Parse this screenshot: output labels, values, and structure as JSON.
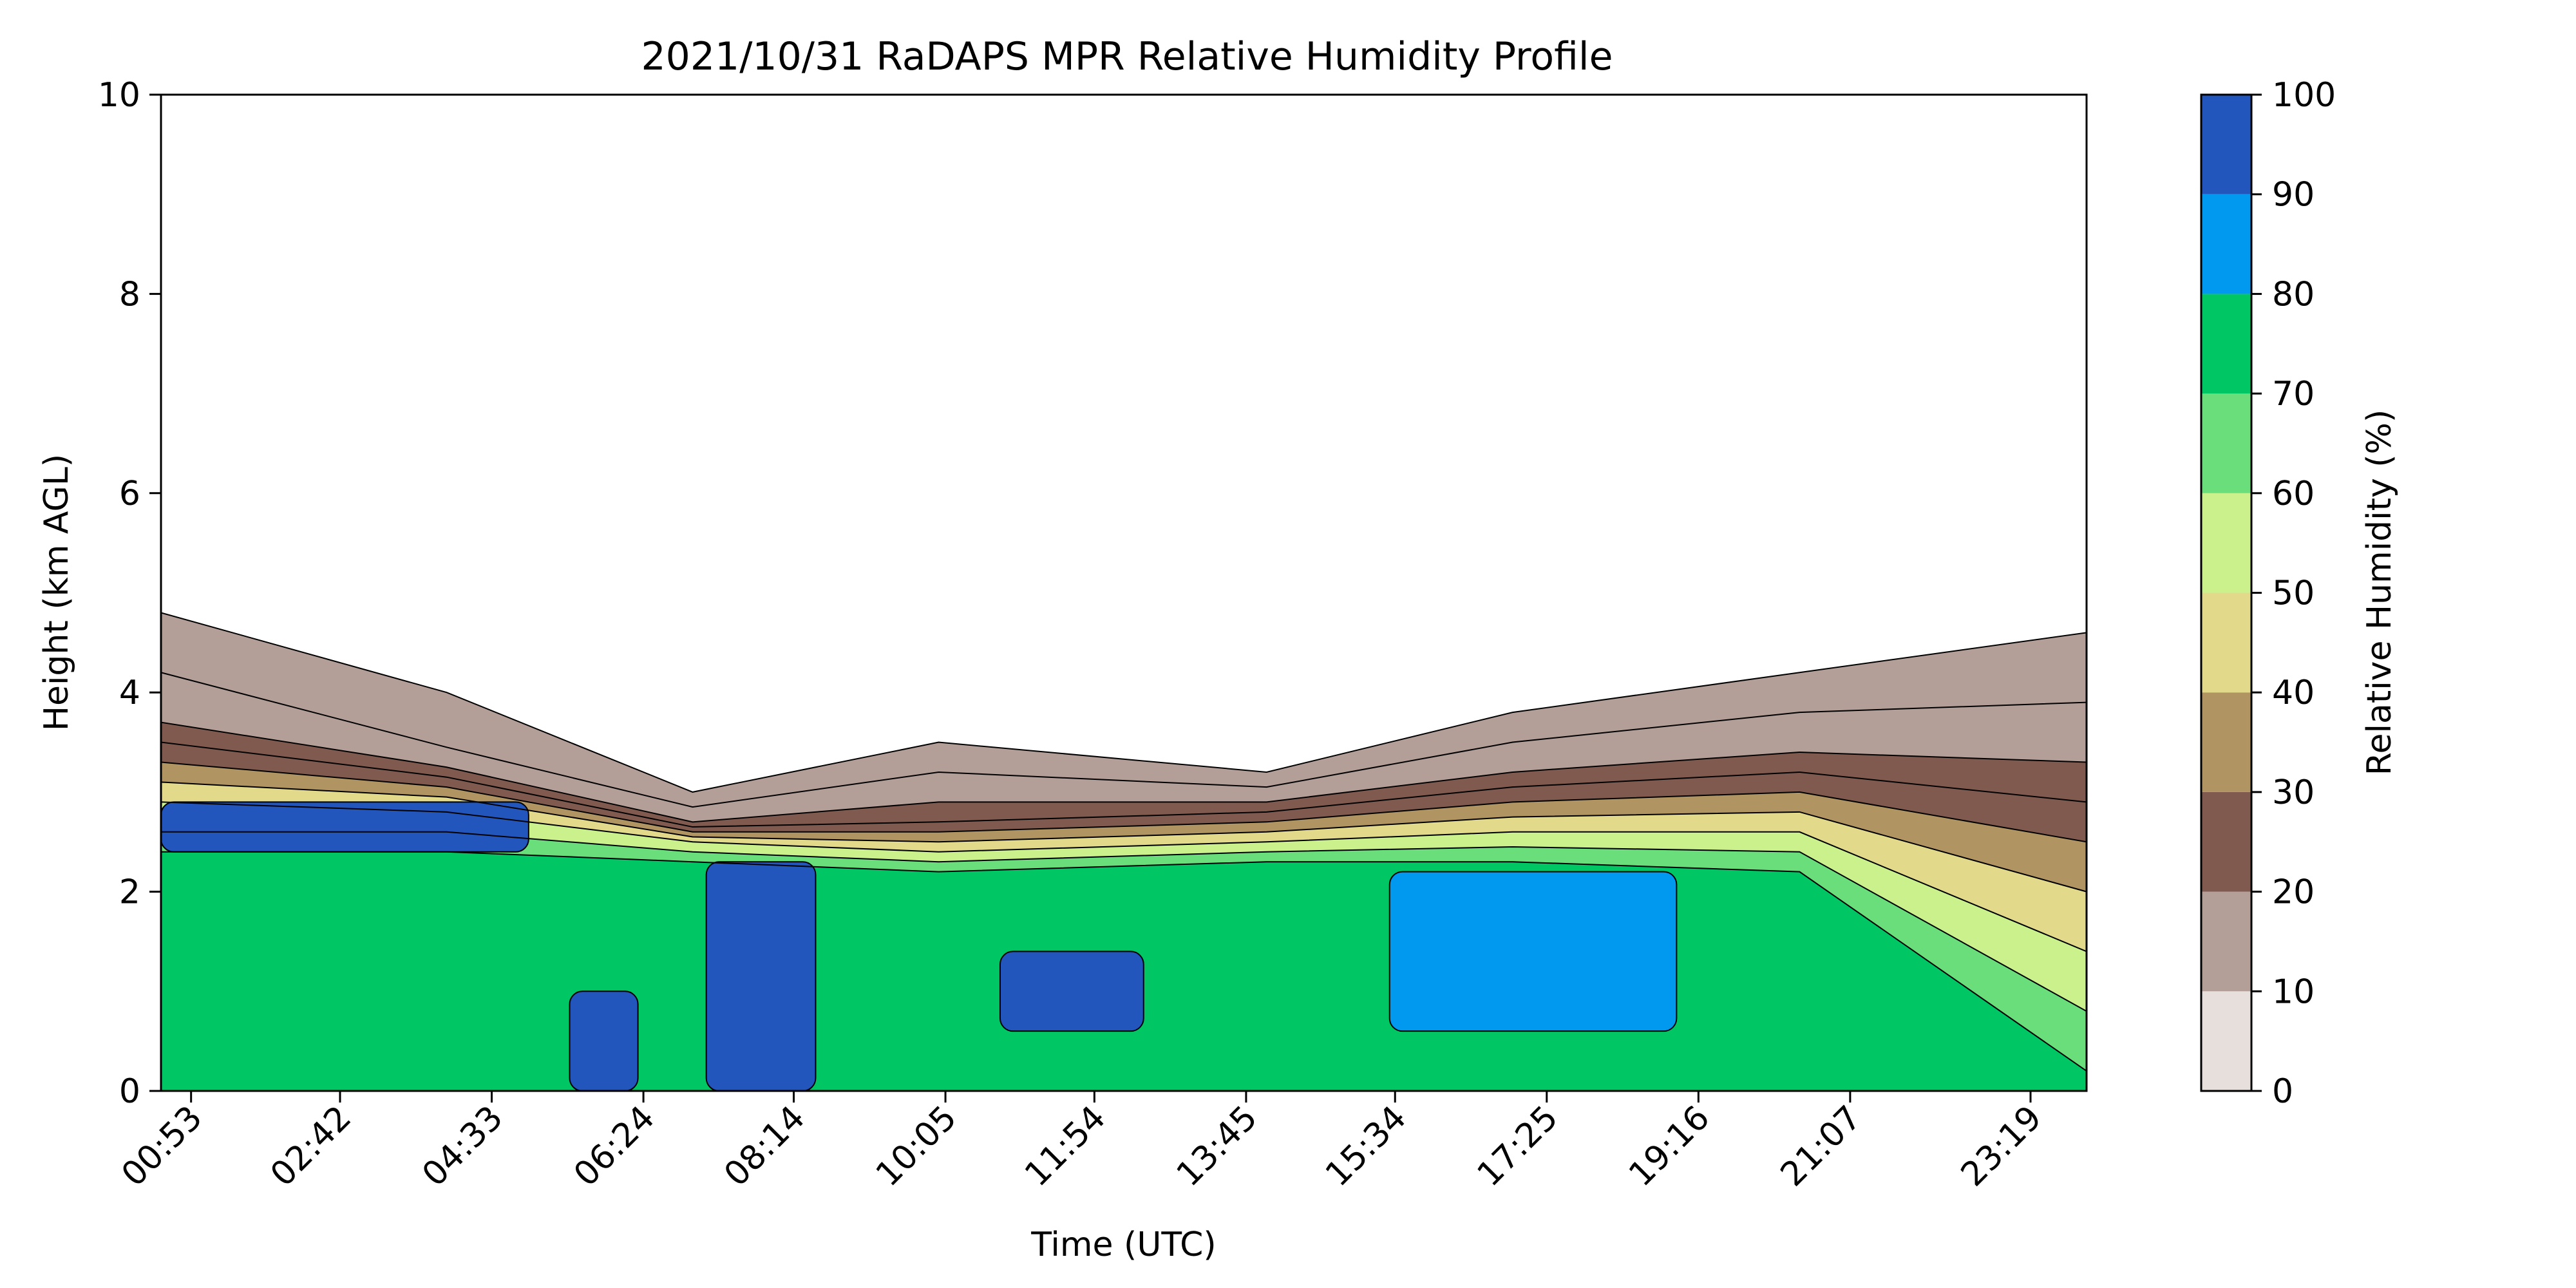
{
  "chart_data": {
    "type": "heatmap",
    "title": "2021/10/31 RaDAPS MPR Relative Humidity Profile",
    "xlabel": "Time (UTC)",
    "ylabel": "Height (km AGL)",
    "colorbar_label": "Relative Humidity (%)",
    "xlim": [
      "00:31",
      "24:00"
    ],
    "ylim": [
      0,
      10
    ],
    "x_ticks": [
      "00:53",
      "02:42",
      "04:33",
      "06:24",
      "08:14",
      "10:05",
      "11:54",
      "13:45",
      "15:34",
      "17:25",
      "19:16",
      "21:07",
      "23:19"
    ],
    "y_ticks": [
      "0",
      "2",
      "4",
      "6",
      "8",
      "10"
    ],
    "colorbar_ticks": [
      "0",
      "10",
      "20",
      "30",
      "40",
      "50",
      "60",
      "70",
      "80",
      "90",
      "100"
    ],
    "levels": [
      0,
      10,
      20,
      30,
      40,
      50,
      60,
      70,
      80,
      90,
      100
    ],
    "level_colors": [
      "#e6dfdc",
      "#b39e98",
      "#805a4f",
      "#b09461",
      "#e2da8a",
      "#cbf18d",
      "#69de7b",
      "#00c763",
      "#0198f0",
      "#2356bd"
    ],
    "grid": false,
    "colorbar_position": "right",
    "profile_series": [
      {
        "time": "00:31",
        "top_km": 4.8,
        "band_tops_km": [
          2.4,
          2.6,
          2.9,
          3.1,
          3.3,
          3.5,
          3.7,
          4.2,
          4.8
        ]
      },
      {
        "time": "04:00",
        "top_km": 4.0,
        "band_tops_km": [
          2.4,
          2.6,
          2.8,
          2.95,
          3.05,
          3.15,
          3.25,
          3.45,
          4.0
        ]
      },
      {
        "time": "07:00",
        "top_km": 3.0,
        "band_tops_km": [
          2.3,
          2.4,
          2.5,
          2.55,
          2.6,
          2.65,
          2.7,
          2.85,
          3.0
        ]
      },
      {
        "time": "10:00",
        "top_km": 3.5,
        "band_tops_km": [
          2.2,
          2.3,
          2.4,
          2.5,
          2.6,
          2.7,
          2.9,
          3.2,
          3.5
        ]
      },
      {
        "time": "14:00",
        "top_km": 3.2,
        "band_tops_km": [
          2.3,
          2.4,
          2.5,
          2.6,
          2.7,
          2.8,
          2.9,
          3.05,
          3.2
        ]
      },
      {
        "time": "17:00",
        "top_km": 3.8,
        "band_tops_km": [
          2.3,
          2.45,
          2.6,
          2.75,
          2.9,
          3.05,
          3.2,
          3.5,
          3.8
        ]
      },
      {
        "time": "20:30",
        "top_km": 4.2,
        "band_tops_km": [
          2.2,
          2.4,
          2.6,
          2.8,
          3.0,
          3.2,
          3.4,
          3.8,
          4.2
        ]
      },
      {
        "time": "24:00",
        "top_km": 4.6,
        "band_tops_km": [
          0.2,
          0.8,
          1.4,
          2.0,
          2.5,
          2.9,
          3.3,
          3.9,
          4.6
        ]
      }
    ],
    "moist_regions": [
      {
        "name": "",
        "t_start": "07:10",
        "t_end": "08:30",
        "z_bottom": 0,
        "z_top": 2.3,
        "rh_min": 90
      },
      {
        "name": "",
        "t_start": "10:45",
        "t_end": "12:30",
        "z_bottom": 0.6,
        "z_top": 1.4,
        "rh_min": 90
      },
      {
        "name": "",
        "t_start": "15:30",
        "t_end": "19:00",
        "z_bottom": 0.6,
        "z_top": 2.2,
        "rh_min": 80
      },
      {
        "name": "",
        "t_start": "00:31",
        "t_end": "05:00",
        "z_bottom": 2.4,
        "z_top": 2.9,
        "rh_min": 90
      },
      {
        "name": "",
        "t_start": "05:30",
        "t_end": "06:20",
        "z_bottom": 0,
        "z_top": 1.0,
        "rh_min": 90
      }
    ]
  }
}
